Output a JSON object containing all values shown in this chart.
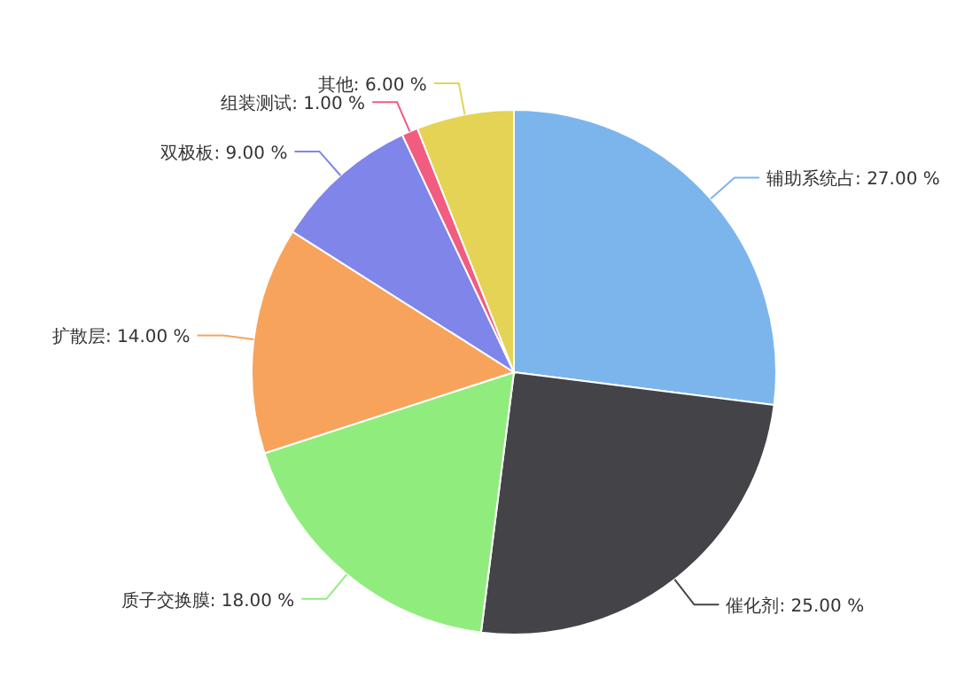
{
  "chart_data": {
    "type": "pie",
    "categories": [
      "辅助系统占",
      "催化剂",
      "质子交换膜",
      "扩散层",
      "双极板",
      "组装测试",
      "其他"
    ],
    "values": [
      27,
      25,
      18,
      14,
      9,
      1,
      6
    ],
    "colors": [
      "#7cb5ec",
      "#434348",
      "#90ed7d",
      "#f7a35c",
      "#8085e9",
      "#f15c80",
      "#e4d354"
    ],
    "value_labels": [
      "27.00 %",
      "25.00 %",
      "18.00 %",
      "14.00 %",
      "9.00 %",
      "1.00 %",
      "6.00 %"
    ]
  }
}
